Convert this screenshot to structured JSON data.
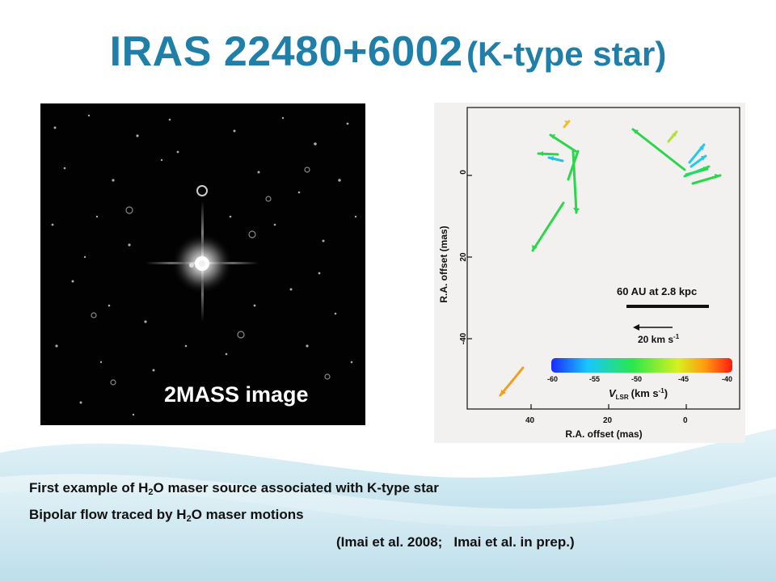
{
  "slide": {
    "title_main": "IRAS 22480+6002",
    "title_sub": "(K-type star)",
    "accent_color": "#1f7fa8"
  },
  "image_panel": {
    "label": "2MASS image",
    "icon": "star-field-image"
  },
  "plot_panel": {
    "y_axis_label": "R.A. offset (mas)",
    "x_axis_label": "R.A. offset (mas)",
    "x_ticks": [
      "40",
      "20",
      "0"
    ],
    "y_ticks": [
      "0",
      "20",
      "-40"
    ],
    "scale_label": "60 AU at 2.8 kpc",
    "velocity_label": "20 km s",
    "velocity_exp": "-1",
    "colorbar_ticks": [
      "-60",
      "-55",
      "-50",
      "-45",
      "-40"
    ],
    "colorbar_label_main": "V",
    "colorbar_label_sub": "LSR",
    "colorbar_label_unit": "(km s",
    "colorbar_label_exp": "-1",
    "colorbar_label_close": ")"
  },
  "captions": {
    "line1_a": "First example of H",
    "line1_sub1": "2",
    "line1_b": "O maser source associated with K-type star",
    "line2_a": "Bipolar flow traced by H",
    "line2_sub1": "2",
    "line2_b": "O maser motions",
    "ref1": "(Imai et al. 2008;",
    "ref2": "Imai et al. in prep.)"
  }
}
